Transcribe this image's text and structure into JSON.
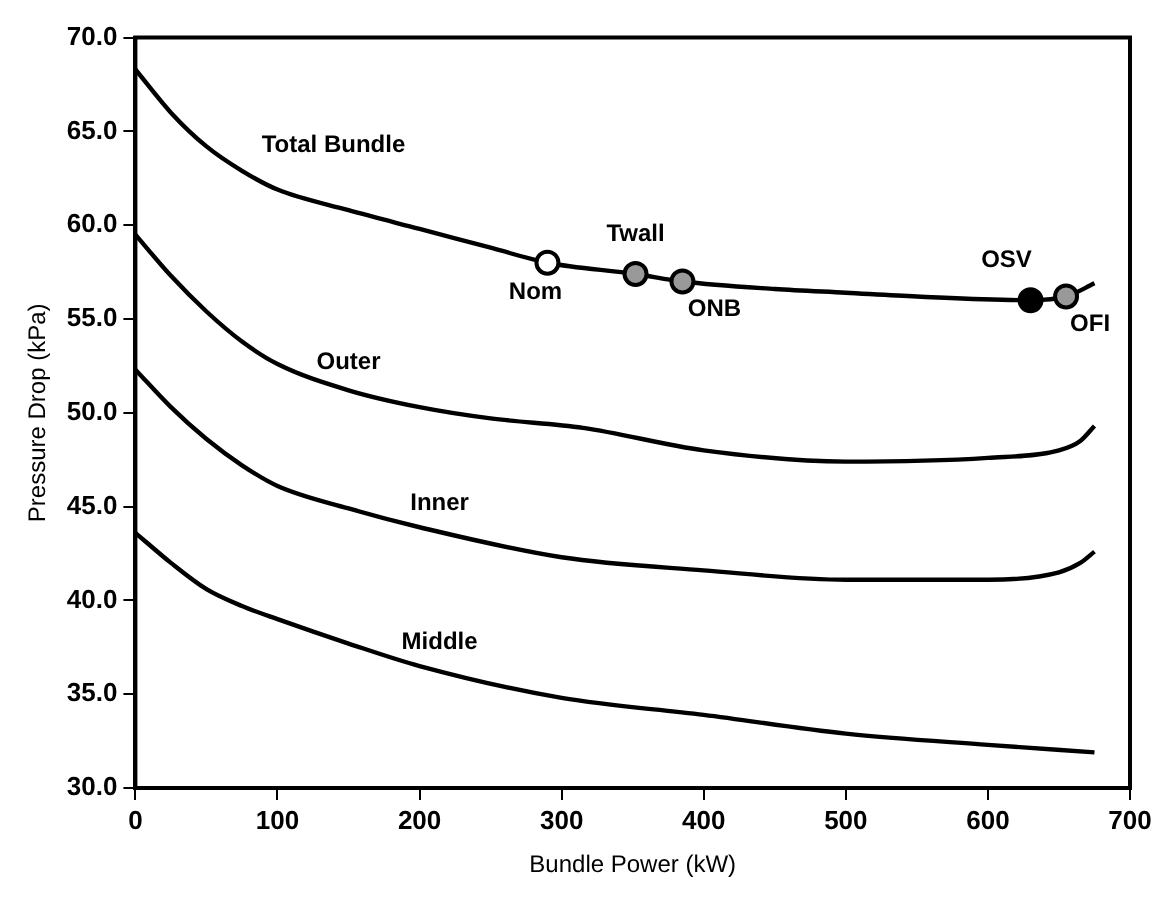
{
  "chart_data": {
    "type": "line",
    "xlabel": "Bundle Power (kW)",
    "ylabel": "Pressure Drop (kPa)",
    "xlim": [
      0,
      700
    ],
    "xticks": [
      0,
      100,
      200,
      300,
      400,
      500,
      600,
      700
    ],
    "ylim": [
      30,
      70
    ],
    "yticks": [
      {
        "value": 30,
        "label": "30.0"
      },
      {
        "value": 35,
        "label": "35.0"
      },
      {
        "value": 40,
        "label": "40.0"
      },
      {
        "value": 45,
        "label": "45.0"
      },
      {
        "value": 50,
        "label": "50.0"
      },
      {
        "value": 55,
        "label": "55.0"
      },
      {
        "value": 60,
        "label": "60.0"
      },
      {
        "value": 65,
        "label": "65.0"
      },
      {
        "value": 70,
        "label": "70.0"
      }
    ],
    "grid": false,
    "legend": false,
    "marker": "none",
    "line_style": "solid",
    "series": [
      {
        "name": "Total Bundle",
        "color": "#000000",
        "x": [
          0,
          25,
          50,
          75,
          100,
          150,
          200,
          250,
          290,
          352,
          385,
          450,
          500,
          550,
          630,
          655,
          675
        ],
        "values": [
          68.3,
          66.0,
          64.2,
          62.9,
          61.9,
          60.8,
          59.8,
          58.8,
          58.0,
          57.4,
          57.0,
          56.6,
          56.4,
          56.2,
          56.0,
          56.2,
          56.9
        ]
      },
      {
        "name": "Outer",
        "color": "#000000",
        "x": [
          0,
          25,
          50,
          75,
          100,
          150,
          200,
          250,
          315,
          400,
          500,
          600,
          650,
          665,
          675
        ],
        "values": [
          59.5,
          57.3,
          55.4,
          53.8,
          52.6,
          51.2,
          50.3,
          49.7,
          49.2,
          48.0,
          47.4,
          47.6,
          48.0,
          48.5,
          49.3
        ]
      },
      {
        "name": "Inner",
        "color": "#000000",
        "x": [
          0,
          25,
          50,
          75,
          100,
          150,
          200,
          300,
          400,
          500,
          600,
          650,
          665,
          675
        ],
        "values": [
          52.3,
          50.3,
          48.6,
          47.2,
          46.1,
          44.9,
          43.9,
          42.3,
          41.6,
          41.1,
          41.1,
          41.5,
          42.0,
          42.6
        ]
      },
      {
        "name": "Middle",
        "color": "#000000",
        "x": [
          0,
          25,
          50,
          75,
          100,
          150,
          200,
          300,
          400,
          500,
          600,
          675
        ],
        "values": [
          43.6,
          42.0,
          40.6,
          39.7,
          39.0,
          37.7,
          36.5,
          34.8,
          33.9,
          32.9,
          32.3,
          31.9
        ]
      },
      {
        "type": "scatter",
        "marker": "circle",
        "x": [
          290,
          352,
          385,
          630,
          655
        ],
        "values": [
          58.0,
          57.4,
          57.0,
          56.0,
          56.2
        ],
        "colors": [
          "#ffffff",
          "#999999",
          "#999999",
          "#000000",
          "#999999"
        ]
      }
    ],
    "annotations": [
      {
        "text": "Nom",
        "x": 290,
        "y": 58.0
      },
      {
        "text": "Twall",
        "x": 352,
        "y": 57.4
      },
      {
        "text": "ONB",
        "x": 385,
        "y": 57.0
      },
      {
        "text": "OSV",
        "x": 630,
        "y": 56.0
      },
      {
        "text": "OFI",
        "x": 655,
        "y": 56.2
      }
    ]
  }
}
